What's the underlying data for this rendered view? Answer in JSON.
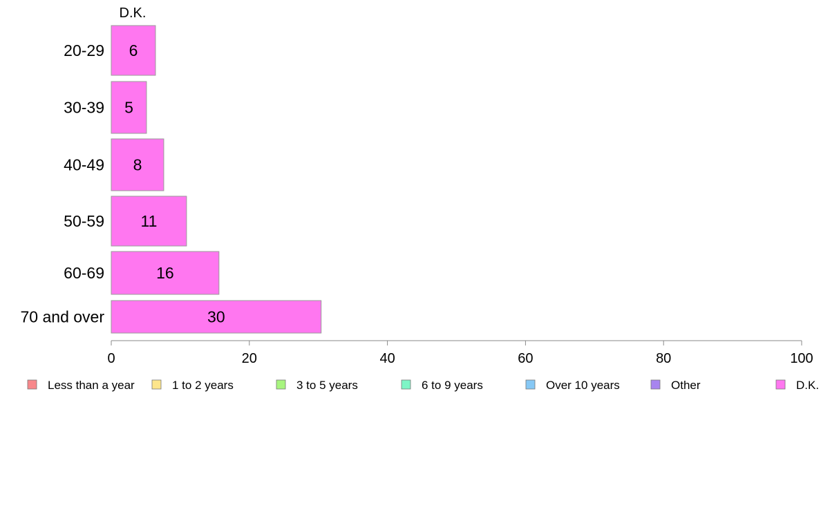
{
  "chart_data": {
    "type": "bar",
    "orientation": "horizontal",
    "series_label_top": "D.K.",
    "categories": [
      "20-29",
      "30-39",
      "40-49",
      "50-59",
      "60-69",
      "70 and over"
    ],
    "series": [
      {
        "name": "D.K.",
        "values": [
          6.4,
          5.1,
          7.6,
          10.9,
          15.6,
          30.4
        ],
        "labels": [
          "6",
          "5",
          "8",
          "11",
          "16",
          "30"
        ]
      }
    ],
    "xlim": [
      0,
      100
    ],
    "xticks": [
      "0",
      "20",
      "40",
      "60",
      "80",
      "100"
    ],
    "grid": false,
    "legend_placement": "bottom",
    "legend": [
      {
        "label": "Less than a year",
        "color": "#f8888b"
      },
      {
        "label": "1 to 2 years",
        "color": "#fde58b"
      },
      {
        "label": "3 to 5 years",
        "color": "#a8f57f"
      },
      {
        "label": "6 to 9 years",
        "color": "#7ef5c6"
      },
      {
        "label": "Over 10 years",
        "color": "#86c8f5"
      },
      {
        "label": "Other",
        "color": "#a784ef"
      },
      {
        "label": "D.K.",
        "color": "#ff77f0"
      }
    ],
    "bar_color": "#ff77f0"
  }
}
